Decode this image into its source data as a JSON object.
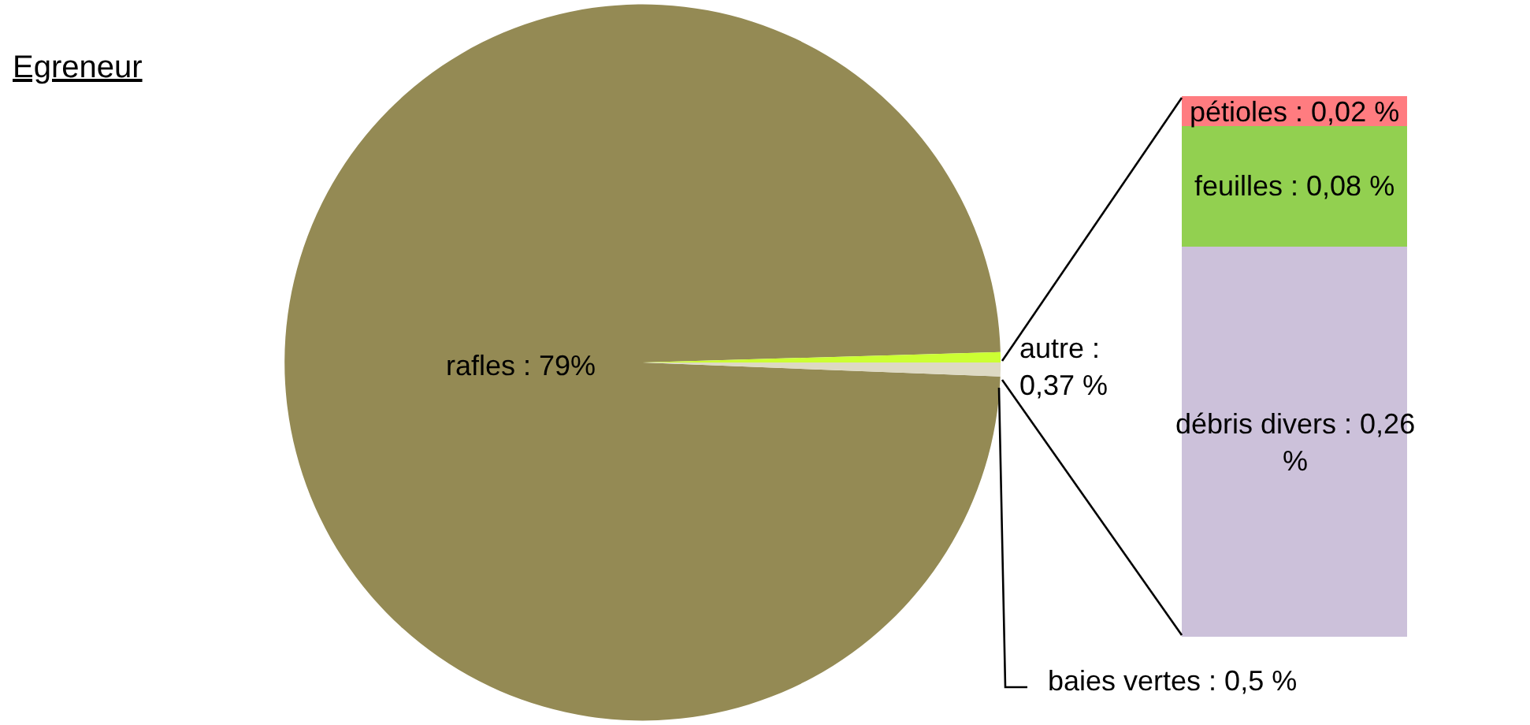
{
  "chart_data": [
    {
      "type": "pie",
      "title": "Egreneur",
      "categories": [
        null,
        null,
        null
      ],
      "values": [
        79,
        0.37,
        0.5
      ],
      "colors": [
        "#948a54",
        "#ccff33",
        "#ddd9c3"
      ],
      "value_labels": [
        "rafles : 79%",
        "autre : 0,37 %",
        "baies vertes : 0,5 %"
      ]
    },
    {
      "type": "bar",
      "stacked": true,
      "categories": [
        null
      ],
      "series": [
        {
          "color": "#ccc1da",
          "values": [
            0.26
          ],
          "value_labels": [
            "débris divers : 0,26 %"
          ]
        },
        {
          "color": "#92d050",
          "values": [
            0.08
          ],
          "value_labels": [
            "feuilles : 0,08 %"
          ]
        },
        {
          "color": "#ff7c80",
          "values": [
            0.02
          ],
          "value_labels": [
            "pétioles : 0,02 %"
          ]
        }
      ]
    }
  ]
}
